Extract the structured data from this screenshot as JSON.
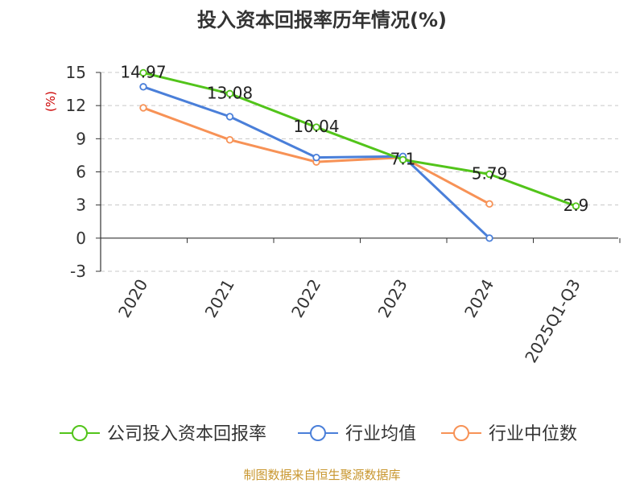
{
  "chart_data": {
    "type": "line",
    "title": "投入资本回报率历年情况(%)",
    "ylabel": "(%)",
    "xlabel": "",
    "categories": [
      "2020",
      "2021",
      "2022",
      "2023",
      "2024",
      "2025Q1-Q3"
    ],
    "ylim": [
      -3,
      15
    ],
    "yticks": [
      15,
      12,
      9,
      6,
      3,
      0,
      -3
    ],
    "grid": true,
    "legend_position": "bottom",
    "series": [
      {
        "name": "公司投入资本回报率",
        "color": "#52c41a",
        "values": [
          14.97,
          13.08,
          10.04,
          7.1,
          5.79,
          2.9
        ],
        "labels": [
          "14.97",
          "13.08",
          "10.04",
          "7.1",
          "5.79",
          "2.9"
        ]
      },
      {
        "name": "行业均值",
        "color": "#4a7fd9",
        "values": [
          13.7,
          11.0,
          7.3,
          7.4,
          0.0,
          null
        ]
      },
      {
        "name": "行业中位数",
        "color": "#f79256",
        "values": [
          11.8,
          8.9,
          6.9,
          7.3,
          3.1,
          null
        ]
      }
    ],
    "source": "制图数据来自恒生聚源数据库"
  }
}
